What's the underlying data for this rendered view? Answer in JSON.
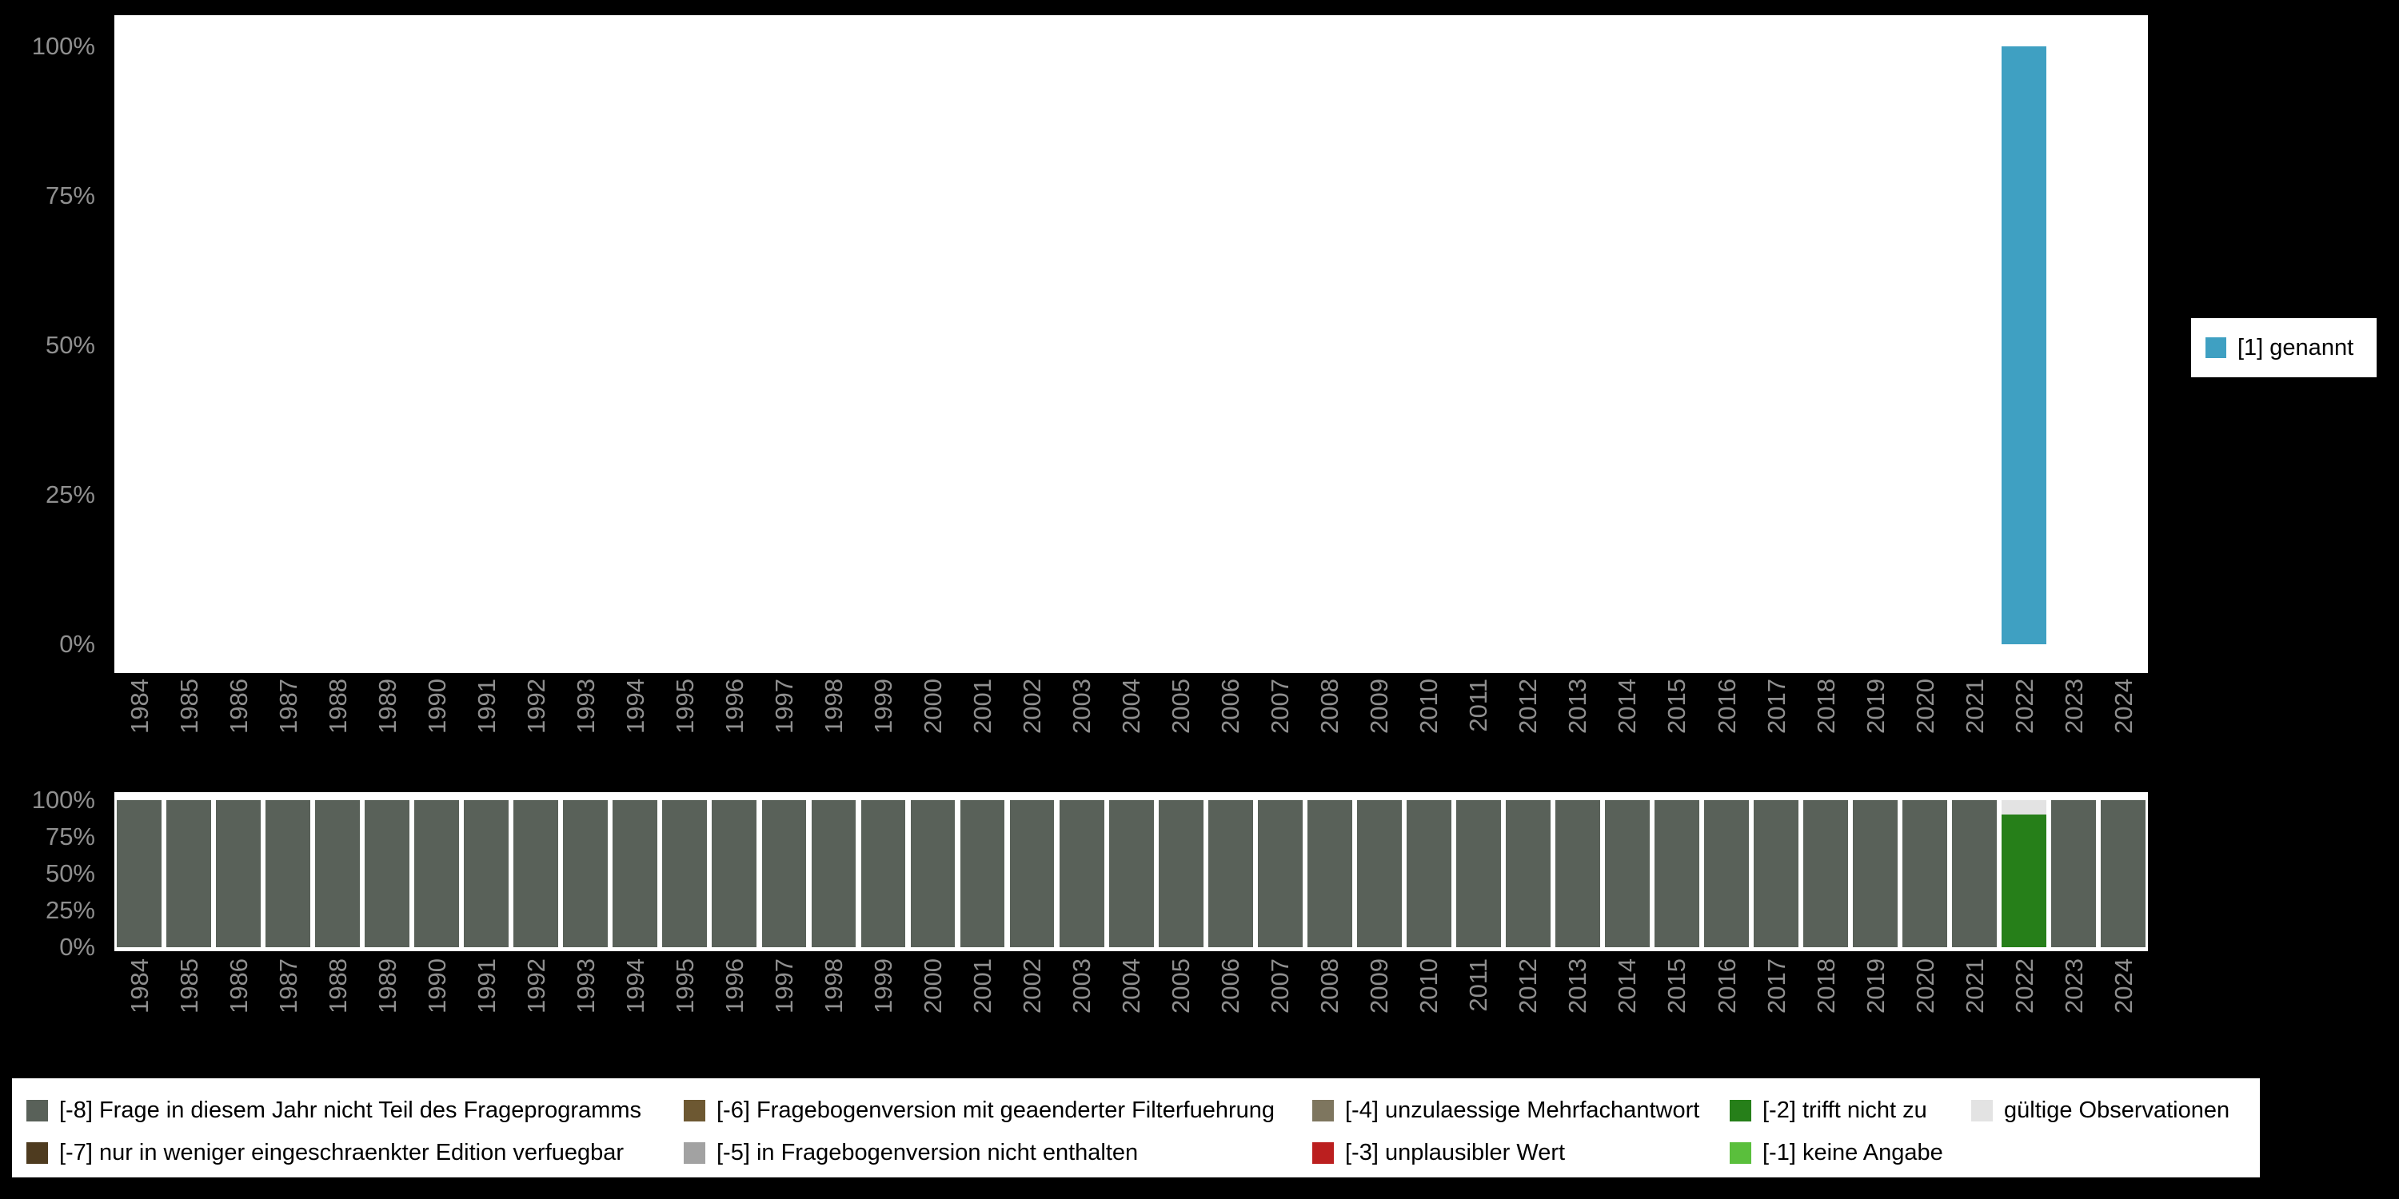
{
  "colors": {
    "background": "#000000",
    "panel": "#ffffff",
    "axis_text": "#8f8f8f",
    "bar_teal": "#3fa0c2",
    "missing_8": "#596159",
    "missing_7": "#4e3b1f",
    "missing_6": "#6d5832",
    "missing_5": "#a2a2a2",
    "missing_4": "#7e765f",
    "missing_3": "#bb1f1f",
    "missing_2": "#267f19",
    "missing_1": "#5abf3c",
    "valid": "#e3e3e3"
  },
  "chart_data": [
    {
      "type": "bar",
      "title": "",
      "xlabel": "",
      "ylabel": "",
      "ylim": [
        0,
        100
      ],
      "grid": false,
      "legend_position": "right",
      "yticks": [
        "100%",
        "75%",
        "50%",
        "25%",
        "0%"
      ],
      "categories": [
        "1984",
        "1985",
        "1986",
        "1987",
        "1988",
        "1989",
        "1990",
        "1991",
        "1992",
        "1993",
        "1994",
        "1995",
        "1996",
        "1997",
        "1998",
        "1999",
        "2000",
        "2001",
        "2002",
        "2003",
        "2004",
        "2005",
        "2006",
        "2007",
        "2008",
        "2009",
        "2010",
        "2011",
        "2012",
        "2013",
        "2014",
        "2015",
        "2016",
        "2017",
        "2018",
        "2019",
        "2020",
        "2021",
        "2022",
        "2023",
        "2024"
      ],
      "series": [
        {
          "name": "[1] genannt",
          "color": "#3fa0c2",
          "values": [
            0,
            0,
            0,
            0,
            0,
            0,
            0,
            0,
            0,
            0,
            0,
            0,
            0,
            0,
            0,
            0,
            0,
            0,
            0,
            0,
            0,
            0,
            0,
            0,
            0,
            0,
            0,
            0,
            0,
            0,
            0,
            0,
            0,
            0,
            0,
            0,
            0,
            0,
            100,
            0,
            0
          ]
        }
      ]
    },
    {
      "type": "bar",
      "stacked": true,
      "title": "",
      "xlabel": "",
      "ylabel": "",
      "ylim": [
        0,
        100
      ],
      "grid": false,
      "legend_position": "bottom",
      "yticks": [
        "100%",
        "75%",
        "50%",
        "25%",
        "0%"
      ],
      "categories": [
        "1984",
        "1985",
        "1986",
        "1987",
        "1988",
        "1989",
        "1990",
        "1991",
        "1992",
        "1993",
        "1994",
        "1995",
        "1996",
        "1997",
        "1998",
        "1999",
        "2000",
        "2001",
        "2002",
        "2003",
        "2004",
        "2005",
        "2006",
        "2007",
        "2008",
        "2009",
        "2010",
        "2011",
        "2012",
        "2013",
        "2014",
        "2015",
        "2016",
        "2017",
        "2018",
        "2019",
        "2020",
        "2021",
        "2022",
        "2023",
        "2024"
      ],
      "series": [
        {
          "name": "[-8] Frage in diesem Jahr nicht Teil des Frageprogramms",
          "color": "#596159",
          "values": [
            100,
            100,
            100,
            100,
            100,
            100,
            100,
            100,
            100,
            100,
            100,
            100,
            100,
            100,
            100,
            100,
            100,
            100,
            100,
            100,
            100,
            100,
            100,
            100,
            100,
            100,
            100,
            100,
            100,
            100,
            100,
            100,
            100,
            100,
            100,
            100,
            100,
            100,
            0,
            100,
            100
          ]
        },
        {
          "name": "[-2] trifft nicht zu",
          "color": "#267f19",
          "values": [
            0,
            0,
            0,
            0,
            0,
            0,
            0,
            0,
            0,
            0,
            0,
            0,
            0,
            0,
            0,
            0,
            0,
            0,
            0,
            0,
            0,
            0,
            0,
            0,
            0,
            0,
            0,
            0,
            0,
            0,
            0,
            0,
            0,
            0,
            0,
            0,
            0,
            0,
            90,
            0,
            0
          ]
        },
        {
          "name": "gültige Observationen",
          "color": "#e3e3e3",
          "values": [
            0,
            0,
            0,
            0,
            0,
            0,
            0,
            0,
            0,
            0,
            0,
            0,
            0,
            0,
            0,
            0,
            0,
            0,
            0,
            0,
            0,
            0,
            0,
            0,
            0,
            0,
            0,
            0,
            0,
            0,
            0,
            0,
            0,
            0,
            0,
            0,
            0,
            0,
            10,
            0,
            0
          ]
        }
      ]
    }
  ],
  "legend_right": {
    "items": [
      {
        "label": "[1] genannt",
        "color": "#3fa0c2"
      }
    ]
  },
  "legend_bottom": {
    "items": [
      {
        "label": "[-8] Frage in diesem Jahr nicht Teil des Frageprogramms",
        "color": "#596159",
        "col": 1,
        "row": 1
      },
      {
        "label": "[-7] nur in weniger eingeschraenkter Edition verfuegbar",
        "color": "#4e3b1f",
        "col": 1,
        "row": 2
      },
      {
        "label": "[-6] Fragebogenversion mit geaenderter Filterfuehrung",
        "color": "#6d5832",
        "col": 2,
        "row": 1
      },
      {
        "label": "[-5] in Fragebogenversion nicht enthalten",
        "color": "#a2a2a2",
        "col": 2,
        "row": 2
      },
      {
        "label": "[-4] unzulaessige Mehrfachantwort",
        "color": "#7e765f",
        "col": 3,
        "row": 1
      },
      {
        "label": "[-3] unplausibler Wert",
        "color": "#bb1f1f",
        "col": 3,
        "row": 2
      },
      {
        "label": "[-2] trifft nicht zu",
        "color": "#267f19",
        "col": 4,
        "row": 1
      },
      {
        "label": "[-1] keine Angabe",
        "color": "#5abf3c",
        "col": 4,
        "row": 2
      },
      {
        "label": "gültige Observationen",
        "color": "#e3e3e3",
        "col": 5,
        "row": 1
      }
    ]
  }
}
